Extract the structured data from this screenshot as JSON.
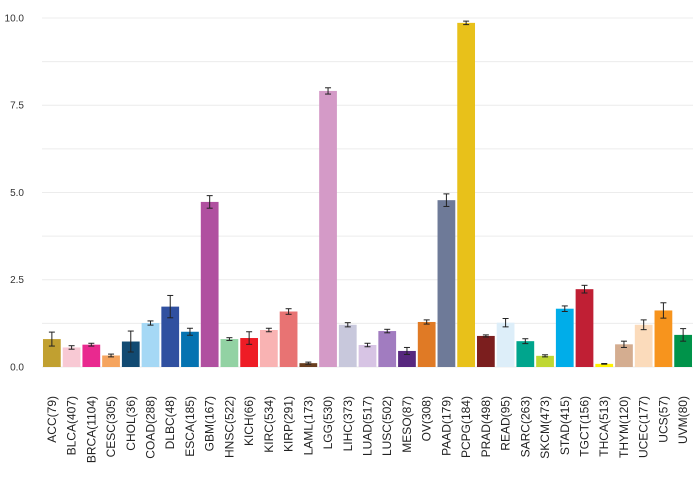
{
  "chart_data": {
    "type": "bar",
    "title": "",
    "xlabel": "",
    "ylabel": "",
    "ylim": [
      0,
      10.2
    ],
    "yticks": [
      0,
      2.5,
      5,
      7.5,
      10
    ],
    "ytick_labels": [
      "0.0",
      "2.5",
      "5.0",
      "7.5",
      "10.0"
    ],
    "grid": true,
    "legend": "none",
    "categories": [
      "ACC(79)",
      "BLCA(407)",
      "BRCA(1104)",
      "CESC(305)",
      "CHOL(36)",
      "COAD(288)",
      "DLBC(48)",
      "ESCA(185)",
      "GBM(167)",
      "HNSC(522)",
      "KICH(66)",
      "KIRC(534)",
      "KIRP(291)",
      "LAML(173)",
      "LGG(530)",
      "LIHC(373)",
      "LUAD(517)",
      "LUSC(502)",
      "MESO(87)",
      "OV(308)",
      "PAAD(179)",
      "PCPG(184)",
      "PRAD(498)",
      "READ(95)",
      "SARC(263)",
      "SKCM(473)",
      "STAD(415)",
      "TGCT(156)",
      "THCA(513)",
      "THYM(120)",
      "UCEC(177)",
      "UCS(57)",
      "UVM(80)"
    ],
    "values": [
      0.8,
      0.56,
      0.64,
      0.33,
      0.73,
      1.26,
      1.73,
      1.01,
      4.73,
      0.8,
      0.83,
      1.06,
      1.59,
      0.11,
      7.91,
      1.21,
      0.63,
      1.03,
      0.46,
      1.29,
      4.78,
      9.86,
      0.89,
      1.27,
      0.74,
      0.32,
      1.67,
      2.23,
      0.09,
      0.65,
      1.21,
      1.62,
      0.92
    ],
    "errors": [
      0.2,
      0.05,
      0.04,
      0.04,
      0.3,
      0.06,
      0.32,
      0.1,
      0.18,
      0.04,
      0.18,
      0.05,
      0.08,
      0.03,
      0.09,
      0.06,
      0.05,
      0.05,
      0.1,
      0.06,
      0.18,
      0.05,
      0.03,
      0.12,
      0.07,
      0.03,
      0.08,
      0.11,
      0.01,
      0.09,
      0.14,
      0.22,
      0.18
    ],
    "colors": [
      "#c1a030",
      "#f8c9d4",
      "#e9298f",
      "#f5a45e",
      "#114a72",
      "#a5d8f5",
      "#3050a0",
      "#0573b1",
      "#b050a0",
      "#92d2a3",
      "#ee1c25",
      "#f9b3b3",
      "#e87373",
      "#6a3f20",
      "#d49ac7",
      "#c8c8dc",
      "#d7c4e4",
      "#a17cc0",
      "#57277e",
      "#e07a25",
      "#6e7a98",
      "#e8c11a",
      "#7b1e1e",
      "#ddeef9",
      "#00a58d",
      "#bfd733",
      "#00ade9",
      "#c01f34",
      "#fff200",
      "#d4ad90",
      "#fbdbbb",
      "#f7941d",
      "#00934a"
    ]
  }
}
